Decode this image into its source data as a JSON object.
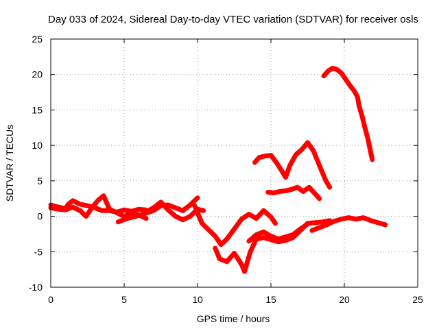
{
  "chart_data": {
    "type": "scatter",
    "title": "Day 033 of 2024, Sidereal Day-to-day VTEC variation (SDTVAR) for receiver osls",
    "xlabel": "GPS time / hours",
    "ylabel": "SDTVAR / TECUs",
    "xlim": [
      0,
      25
    ],
    "ylim": [
      -10,
      25
    ],
    "xticks": [
      0,
      5,
      10,
      15,
      20,
      25
    ],
    "yticks": [
      -10,
      -5,
      0,
      5,
      10,
      15,
      20,
      25
    ],
    "grid": true,
    "legend": "none",
    "marker": "plus",
    "color": "#ff0000",
    "series": [
      {
        "values": [
          [
            0.0,
            1.6
          ],
          [
            0.5,
            1.3
          ],
          [
            1.0,
            1.1
          ],
          [
            1.2,
            1.7
          ],
          [
            1.5,
            2.2
          ],
          [
            2.0,
            1.7
          ],
          [
            2.5,
            1.5
          ],
          [
            3.0,
            1.2
          ],
          [
            3.5,
            0.8
          ],
          [
            4.0,
            0.8
          ],
          [
            4.5,
            0.6
          ],
          [
            5.0,
            0.9
          ],
          [
            5.5,
            0.7
          ],
          [
            6.0,
            1.0
          ],
          [
            6.5,
            0.9
          ]
        ]
      },
      {
        "values": [
          [
            0.0,
            1.2
          ],
          [
            0.5,
            1.0
          ],
          [
            1.0,
            0.9
          ],
          [
            1.5,
            1.3
          ],
          [
            2.0,
            0.8
          ],
          [
            2.4,
            0.0
          ],
          [
            2.8,
            1.2
          ],
          [
            3.2,
            2.2
          ],
          [
            3.6,
            2.9
          ],
          [
            4.0,
            1.0
          ],
          [
            4.5,
            0.5
          ],
          [
            5.0,
            0.0
          ],
          [
            5.5,
            0.5
          ],
          [
            6.0,
            0.2
          ],
          [
            6.5,
            -0.3
          ]
        ]
      },
      {
        "values": [
          [
            4.6,
            -0.8
          ],
          [
            5.2,
            -0.3
          ],
          [
            5.8,
            0.0
          ],
          [
            6.4,
            0.4
          ],
          [
            7.0,
            0.8
          ],
          [
            7.5,
            1.5
          ],
          [
            8.0,
            1.6
          ],
          [
            8.5,
            1.2
          ],
          [
            9.0,
            0.8
          ],
          [
            9.5,
            1.6
          ],
          [
            10.0,
            2.6
          ]
        ]
      },
      {
        "values": [
          [
            6.5,
            0.6
          ],
          [
            7.0,
            1.2
          ],
          [
            7.5,
            2.0
          ],
          [
            8.0,
            0.9
          ],
          [
            8.5,
            0.0
          ],
          [
            9.0,
            -0.5
          ],
          [
            9.5,
            0.0
          ],
          [
            10.0,
            1.0
          ],
          [
            10.4,
            0.8
          ]
        ]
      },
      {
        "values": [
          [
            9.8,
            1.5
          ],
          [
            10.3,
            -1.0
          ],
          [
            10.8,
            -2.0
          ],
          [
            11.2,
            -2.8
          ],
          [
            11.6,
            -4.0
          ],
          [
            12.0,
            -3.2
          ],
          [
            12.5,
            -1.8
          ],
          [
            13.0,
            -0.4
          ],
          [
            13.5,
            0.3
          ],
          [
            14.0,
            -0.3
          ],
          [
            14.5,
            0.8
          ],
          [
            15.0,
            -0.1
          ],
          [
            15.3,
            -1.0
          ]
        ]
      },
      {
        "values": [
          [
            11.2,
            -4.5
          ],
          [
            11.5,
            -6.0
          ],
          [
            12.0,
            -6.4
          ],
          [
            12.5,
            -5.2
          ],
          [
            13.0,
            -6.8
          ],
          [
            13.2,
            -7.8
          ],
          [
            13.6,
            -5.0
          ],
          [
            14.0,
            -3.2
          ],
          [
            14.5,
            -3.0
          ],
          [
            15.0,
            -3.3
          ],
          [
            15.5,
            -3.6
          ],
          [
            16.0,
            -3.4
          ],
          [
            16.5,
            -3.0
          ],
          [
            17.0,
            -2.0
          ],
          [
            17.5,
            -1.0
          ],
          [
            18.0,
            -0.9
          ],
          [
            18.5,
            -0.8
          ],
          [
            19.0,
            -0.6
          ]
        ]
      },
      {
        "values": [
          [
            13.5,
            -3.5
          ],
          [
            14.0,
            -2.6
          ],
          [
            14.5,
            -2.2
          ],
          [
            15.0,
            -2.8
          ],
          [
            15.5,
            -3.2
          ],
          [
            16.0,
            -2.9
          ],
          [
            16.5,
            -2.6
          ],
          [
            17.0,
            -1.8
          ],
          [
            17.5,
            -1.1
          ]
        ]
      },
      {
        "values": [
          [
            17.8,
            -2.0
          ],
          [
            18.3,
            -1.6
          ],
          [
            18.8,
            -1.2
          ],
          [
            19.3,
            -0.7
          ],
          [
            19.8,
            -0.4
          ],
          [
            20.3,
            -0.2
          ],
          [
            20.8,
            -0.4
          ],
          [
            21.3,
            -0.2
          ],
          [
            21.8,
            -0.6
          ],
          [
            22.3,
            -0.9
          ],
          [
            22.8,
            -1.2
          ]
        ]
      },
      {
        "values": [
          [
            13.9,
            7.6
          ],
          [
            14.2,
            8.3
          ],
          [
            14.6,
            8.5
          ],
          [
            15.0,
            8.6
          ],
          [
            15.4,
            7.5
          ],
          [
            15.8,
            6.2
          ],
          [
            16.0,
            5.5
          ],
          [
            16.3,
            7.2
          ],
          [
            16.7,
            8.7
          ],
          [
            17.1,
            9.4
          ],
          [
            17.5,
            10.4
          ],
          [
            17.9,
            9.2
          ],
          [
            18.3,
            7.2
          ],
          [
            18.7,
            5.2
          ],
          [
            19.0,
            4.1
          ]
        ]
      },
      {
        "values": [
          [
            14.8,
            3.4
          ],
          [
            15.2,
            3.3
          ],
          [
            15.6,
            3.5
          ],
          [
            16.0,
            3.6
          ],
          [
            16.4,
            3.8
          ],
          [
            16.8,
            4.1
          ],
          [
            17.2,
            3.5
          ],
          [
            17.6,
            4.1
          ],
          [
            18.0,
            3.2
          ],
          [
            18.3,
            2.5
          ]
        ]
      },
      {
        "values": [
          [
            18.6,
            19.8
          ],
          [
            18.9,
            20.5
          ],
          [
            19.2,
            20.9
          ],
          [
            19.5,
            20.7
          ],
          [
            19.8,
            20.2
          ],
          [
            20.1,
            19.3
          ],
          [
            20.4,
            18.4
          ],
          [
            20.7,
            17.6
          ],
          [
            20.9,
            16.8
          ],
          [
            21.0,
            15.6
          ],
          [
            21.2,
            14.2
          ],
          [
            21.4,
            12.5
          ],
          [
            21.6,
            11.0
          ],
          [
            21.8,
            9.0
          ],
          [
            21.9,
            8.0
          ]
        ]
      }
    ]
  }
}
